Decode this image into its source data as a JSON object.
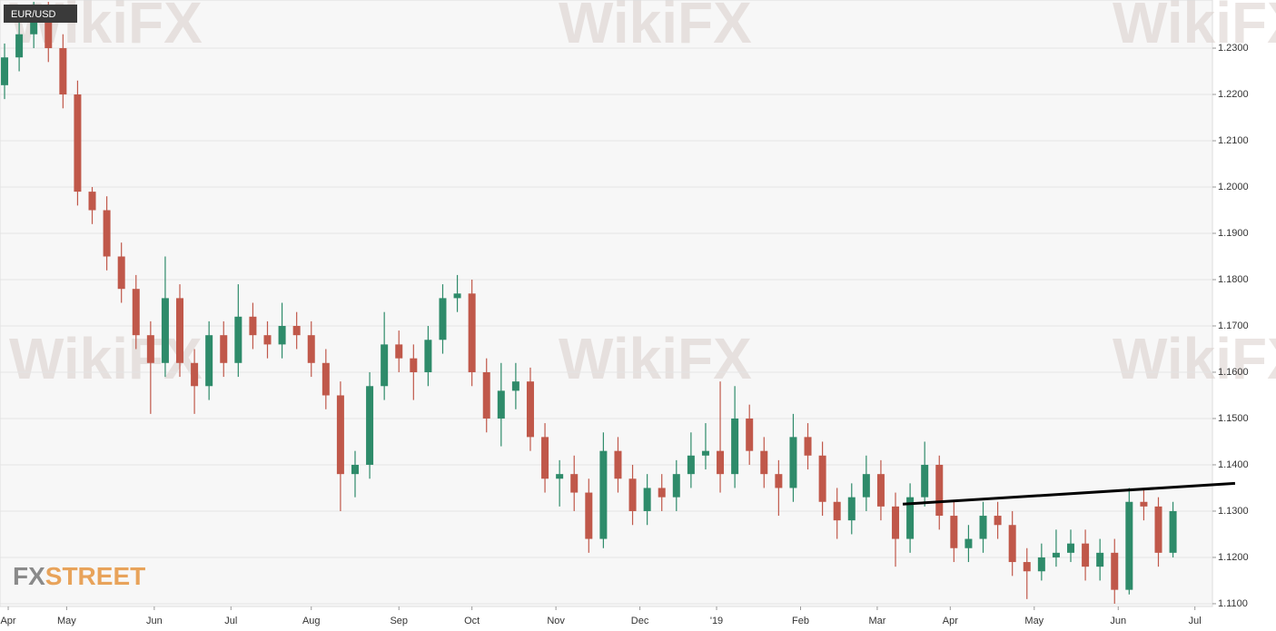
{
  "chart_data": {
    "type": "candlestick",
    "title": "EUR/USD",
    "watermark": "WikiFX",
    "logo": [
      "FX",
      "STREET"
    ],
    "x": [
      0,
      4,
      8,
      12,
      16,
      20,
      24,
      28,
      32,
      36,
      40,
      44,
      48,
      52,
      56,
      60,
      64,
      68,
      72,
      76,
      80,
      84,
      88,
      92,
      96,
      100,
      104,
      108,
      112,
      116,
      120,
      124,
      128,
      132,
      136,
      140,
      144,
      148,
      152,
      156,
      160,
      164,
      168,
      172,
      176,
      180,
      184,
      188,
      192,
      196,
      200,
      204,
      208,
      212,
      216,
      220,
      224,
      228,
      232,
      236,
      240,
      244,
      248,
      252,
      256,
      260,
      264,
      268,
      272,
      276,
      280,
      284,
      288,
      292,
      296,
      300,
      304,
      308,
      312,
      316,
      320
    ],
    "open": [
      1.222,
      1.228,
      1.233,
      1.237,
      1.23,
      1.22,
      1.199,
      1.195,
      1.185,
      1.178,
      1.168,
      1.162,
      1.176,
      1.162,
      1.157,
      1.168,
      1.162,
      1.172,
      1.168,
      1.166,
      1.17,
      1.168,
      1.162,
      1.155,
      1.138,
      1.14,
      1.157,
      1.166,
      1.163,
      1.16,
      1.167,
      1.176,
      1.177,
      1.16,
      1.15,
      1.156,
      1.158,
      1.146,
      1.137,
      1.138,
      1.134,
      1.124,
      1.143,
      1.137,
      1.13,
      1.135,
      1.133,
      1.138,
      1.142,
      1.143,
      1.138,
      1.15,
      1.143,
      1.138,
      1.135,
      1.146,
      1.142,
      1.132,
      1.128,
      1.133,
      1.138,
      1.131,
      1.124,
      1.133,
      1.14,
      1.129,
      1.122,
      1.124,
      1.129,
      1.127,
      1.119,
      1.117,
      1.12,
      1.121,
      1.123,
      1.118,
      1.121,
      1.113,
      1.132,
      1.131,
      1.121
    ],
    "high": [
      1.231,
      1.236,
      1.24,
      1.24,
      1.233,
      1.223,
      1.2,
      1.198,
      1.188,
      1.181,
      1.171,
      1.185,
      1.179,
      1.165,
      1.171,
      1.171,
      1.179,
      1.175,
      1.171,
      1.175,
      1.173,
      1.171,
      1.165,
      1.158,
      1.143,
      1.16,
      1.173,
      1.169,
      1.166,
      1.17,
      1.179,
      1.181,
      1.18,
      1.163,
      1.162,
      1.162,
      1.161,
      1.149,
      1.141,
      1.142,
      1.137,
      1.147,
      1.146,
      1.14,
      1.138,
      1.138,
      1.141,
      1.147,
      1.149,
      1.158,
      1.157,
      1.153,
      1.146,
      1.141,
      1.151,
      1.149,
      1.145,
      1.135,
      1.136,
      1.142,
      1.141,
      1.134,
      1.136,
      1.145,
      1.142,
      1.132,
      1.127,
      1.132,
      1.132,
      1.13,
      1.122,
      1.123,
      1.126,
      1.126,
      1.126,
      1.124,
      1.124,
      1.135,
      1.135,
      1.133,
      1.132
    ],
    "low": [
      1.219,
      1.225,
      1.23,
      1.227,
      1.217,
      1.196,
      1.192,
      1.182,
      1.175,
      1.165,
      1.151,
      1.159,
      1.159,
      1.151,
      1.154,
      1.159,
      1.159,
      1.165,
      1.163,
      1.163,
      1.165,
      1.159,
      1.152,
      1.13,
      1.133,
      1.137,
      1.154,
      1.16,
      1.154,
      1.157,
      1.164,
      1.173,
      1.157,
      1.147,
      1.144,
      1.152,
      1.143,
      1.134,
      1.131,
      1.13,
      1.121,
      1.122,
      1.134,
      1.127,
      1.127,
      1.13,
      1.13,
      1.135,
      1.139,
      1.134,
      1.135,
      1.14,
      1.135,
      1.129,
      1.132,
      1.139,
      1.129,
      1.124,
      1.125,
      1.13,
      1.128,
      1.118,
      1.121,
      1.131,
      1.126,
      1.119,
      1.119,
      1.121,
      1.124,
      1.116,
      1.111,
      1.115,
      1.118,
      1.119,
      1.115,
      1.115,
      1.11,
      1.112,
      1.128,
      1.118,
      1.12
    ],
    "close": [
      1.228,
      1.233,
      1.237,
      1.23,
      1.22,
      1.199,
      1.195,
      1.185,
      1.178,
      1.168,
      1.162,
      1.176,
      1.162,
      1.157,
      1.168,
      1.162,
      1.172,
      1.168,
      1.166,
      1.17,
      1.168,
      1.162,
      1.155,
      1.138,
      1.14,
      1.157,
      1.166,
      1.163,
      1.16,
      1.167,
      1.176,
      1.177,
      1.16,
      1.15,
      1.156,
      1.158,
      1.146,
      1.137,
      1.138,
      1.134,
      1.124,
      1.143,
      1.137,
      1.13,
      1.135,
      1.133,
      1.138,
      1.142,
      1.143,
      1.138,
      1.15,
      1.143,
      1.138,
      1.135,
      1.146,
      1.142,
      1.132,
      1.128,
      1.133,
      1.138,
      1.131,
      1.124,
      1.133,
      1.14,
      1.129,
      1.122,
      1.124,
      1.129,
      1.127,
      1.119,
      1.117,
      1.12,
      1.121,
      1.123,
      1.118,
      1.121,
      1.113,
      1.132,
      1.131,
      1.121,
      1.13
    ],
    "up_color": "#2e8b6a",
    "down_color": "#c0584a",
    "xlim": [
      -1.25,
      330.8
    ],
    "ylim": [
      1.1094,
      1.2404
    ],
    "xticks": [
      {
        "value": 1,
        "label": "Apr"
      },
      {
        "value": 17,
        "label": "May"
      },
      {
        "value": 41,
        "label": "Jun"
      },
      {
        "value": 62,
        "label": "Jul"
      },
      {
        "value": 84,
        "label": "Aug"
      },
      {
        "value": 108,
        "label": "Sep"
      },
      {
        "value": 128,
        "label": "Oct"
      },
      {
        "value": 151,
        "label": "Nov"
      },
      {
        "value": 174,
        "label": "Dec"
      },
      {
        "value": 195,
        "label": "'19"
      },
      {
        "value": 218,
        "label": "Feb"
      },
      {
        "value": 239,
        "label": "Mar"
      },
      {
        "value": 259,
        "label": "Apr"
      },
      {
        "value": 282,
        "label": "May"
      },
      {
        "value": 305,
        "label": "Jun"
      },
      {
        "value": 326,
        "label": "Jul"
      }
    ],
    "yticks": [
      {
        "value": 1.11,
        "label": "1.1100"
      },
      {
        "value": 1.12,
        "label": "1.1200"
      },
      {
        "value": 1.13,
        "label": "1.1300"
      },
      {
        "value": 1.14,
        "label": "1.1400"
      },
      {
        "value": 1.15,
        "label": "1.1500"
      },
      {
        "value": 1.16,
        "label": "1.1600"
      },
      {
        "value": 1.17,
        "label": "1.1700"
      },
      {
        "value": 1.18,
        "label": "1.1800"
      },
      {
        "value": 1.19,
        "label": "1.1900"
      },
      {
        "value": 1.2,
        "label": "1.2000"
      },
      {
        "value": 1.21,
        "label": "1.2100"
      },
      {
        "value": 1.22,
        "label": "1.2200"
      },
      {
        "value": 1.23,
        "label": "1.2300"
      }
    ],
    "grid": true,
    "trendline": {
      "x": [
        246,
        337
      ],
      "values": [
        1.1315,
        1.136
      ],
      "color": "#000000"
    }
  }
}
